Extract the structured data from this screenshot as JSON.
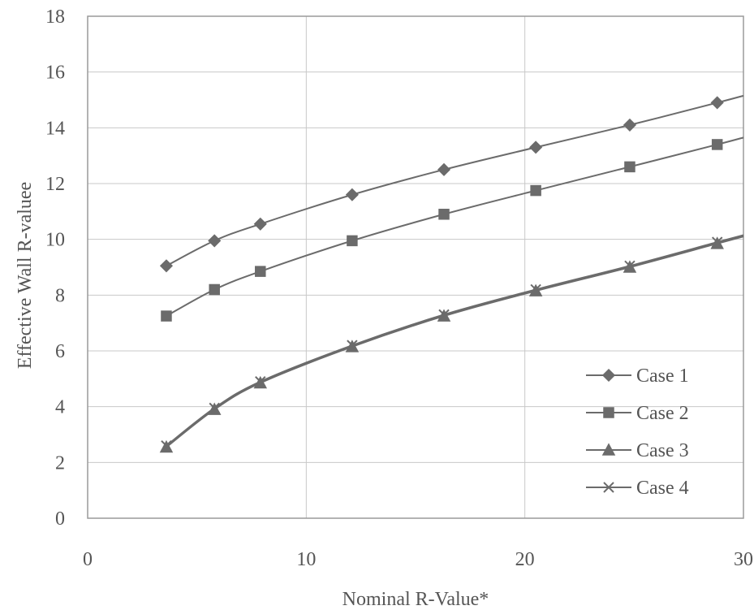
{
  "chart_data": {
    "type": "line",
    "title": "",
    "xlabel": "Nominal R-Value*",
    "ylabel": "Effective Wall R-valuee",
    "xlim": [
      0,
      30
    ],
    "ylim": [
      0,
      18
    ],
    "xticks": [
      0,
      10,
      20,
      30
    ],
    "yticks": [
      0,
      2,
      4,
      6,
      8,
      10,
      12,
      14,
      16,
      18
    ],
    "grid": true,
    "legend_position": "bottom-right",
    "series": [
      {
        "name": "Case 1",
        "marker": "diamond",
        "x": [
          3.6,
          5.8,
          7.9,
          12.1,
          16.3,
          20.5,
          24.8,
          28.8,
          30
        ],
        "y": [
          9.05,
          9.95,
          10.55,
          11.6,
          12.5,
          13.3,
          14.1,
          14.9,
          15.15
        ],
        "marked": [
          true,
          true,
          true,
          true,
          true,
          true,
          true,
          true,
          false
        ]
      },
      {
        "name": "Case 2",
        "marker": "square",
        "x": [
          3.6,
          5.8,
          7.9,
          12.1,
          16.3,
          20.5,
          24.8,
          28.8,
          30
        ],
        "y": [
          7.25,
          8.2,
          8.85,
          9.95,
          10.9,
          11.75,
          12.6,
          13.4,
          13.65
        ],
        "marked": [
          true,
          true,
          true,
          true,
          true,
          true,
          true,
          true,
          false
        ]
      },
      {
        "name": "Case 3",
        "marker": "triangle",
        "x": [
          3.6,
          5.8,
          7.9,
          12.1,
          16.3,
          20.5,
          24.8,
          28.8,
          30
        ],
        "y": [
          2.55,
          3.9,
          4.85,
          6.15,
          7.25,
          8.15,
          9.0,
          9.85,
          10.1
        ],
        "marked": [
          true,
          true,
          true,
          true,
          true,
          true,
          true,
          true,
          false
        ]
      },
      {
        "name": "Case 4",
        "marker": "x",
        "x": [
          3.6,
          5.8,
          7.9,
          12.1,
          16.3,
          20.5,
          24.8,
          28.8,
          30
        ],
        "y": [
          2.6,
          3.95,
          4.9,
          6.2,
          7.3,
          8.2,
          9.05,
          9.9,
          10.15
        ],
        "marked": [
          true,
          true,
          true,
          true,
          true,
          true,
          true,
          true,
          false
        ]
      }
    ]
  },
  "colors": {
    "series": "#6b6b6b",
    "grid": "#c8c8c8",
    "text": "#555555"
  }
}
